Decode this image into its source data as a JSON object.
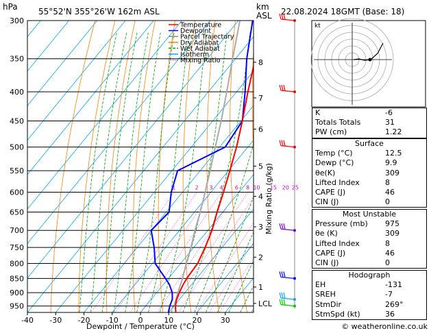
{
  "header": {
    "pressure_unit": "hPa",
    "location": "55°52'N  355°26'W  162m  ASL",
    "height_unit_km": "km",
    "height_unit_asl": "ASL",
    "datetime": "22.08.2024  18GMT  (Base: 18)"
  },
  "chart_data": {
    "type": "skew-t",
    "xlabel": "Dewpoint / Temperature (°C)",
    "ylabel_right": "Mixing Ratio (g/kg)",
    "pressure_levels": [
      300,
      350,
      400,
      450,
      500,
      550,
      600,
      650,
      700,
      750,
      800,
      850,
      900,
      950
    ],
    "pressure_range": [
      300,
      975
    ],
    "temperature_ticks": [
      -40,
      -30,
      -20,
      -10,
      0,
      10,
      20,
      30
    ],
    "temperature_range_at_bottom": [
      -40,
      40
    ],
    "km_ticks": [
      {
        "label": "1",
        "p": 880
      },
      {
        "label": "2",
        "p": 780
      },
      {
        "label": "3",
        "p": 690
      },
      {
        "label": "4",
        "p": 610
      },
      {
        "label": "5",
        "p": 540
      },
      {
        "label": "6",
        "p": 465
      },
      {
        "label": "7",
        "p": 410
      },
      {
        "label": "8",
        "p": 355
      },
      {
        "label": "LCL",
        "p": 940
      }
    ],
    "mixing_ratio_labels": [
      "1",
      "2",
      "3",
      "4",
      "6",
      "8",
      "10",
      "15",
      "20",
      "25"
    ],
    "legend": [
      {
        "name": "Temperature",
        "color": "#ff0000"
      },
      {
        "name": "Dewpoint",
        "color": "#0000ff"
      },
      {
        "name": "Parcel Trajectory",
        "color": "#888888"
      },
      {
        "name": "Dry Adiabat",
        "color": "#ff8000"
      },
      {
        "name": "Wet Adiabat",
        "color": "#00a000"
      },
      {
        "name": "Isotherm",
        "color": "#00aaff"
      },
      {
        "name": "Mixing Ratio",
        "color": "#ff00ff"
      }
    ],
    "temperature_profile": [
      [
        975,
        12.5
      ],
      [
        950,
        10.5
      ],
      [
        925,
        9.0
      ],
      [
        900,
        8.0
      ],
      [
        870,
        7.0
      ],
      [
        850,
        6.5
      ],
      [
        800,
        6.0
      ],
      [
        750,
        4.0
      ],
      [
        700,
        1.5
      ],
      [
        650,
        -2.0
      ],
      [
        600,
        -5.5
      ],
      [
        550,
        -9.5
      ],
      [
        500,
        -14.0
      ],
      [
        450,
        -19.5
      ],
      [
        400,
        -26.0
      ],
      [
        350,
        -33.0
      ],
      [
        300,
        -40.0
      ]
    ],
    "dewpoint_profile": [
      [
        975,
        9.9
      ],
      [
        950,
        8.5
      ],
      [
        925,
        7.5
      ],
      [
        900,
        5.5
      ],
      [
        870,
        2.0
      ],
      [
        850,
        -1.0
      ],
      [
        800,
        -9.0
      ],
      [
        750,
        -14.0
      ],
      [
        700,
        -20.0
      ],
      [
        650,
        -19.0
      ],
      [
        600,
        -24.0
      ],
      [
        550,
        -28.0
      ],
      [
        500,
        -18.0
      ],
      [
        450,
        -19.5
      ],
      [
        400,
        -27.0
      ],
      [
        350,
        -36.0
      ],
      [
        300,
        -45.0
      ]
    ],
    "parcel_profile": [
      [
        975,
        12.5
      ],
      [
        940,
        9.5
      ],
      [
        900,
        7.5
      ],
      [
        850,
        5.0
      ],
      [
        800,
        2.0
      ],
      [
        750,
        -1.0
      ],
      [
        700,
        -4.5
      ],
      [
        650,
        -8.0
      ],
      [
        600,
        -12.0
      ],
      [
        550,
        -16.5
      ],
      [
        500,
        -21.5
      ],
      [
        450,
        -27.0
      ],
      [
        400,
        -33.5
      ],
      [
        350,
        -41.0
      ],
      [
        300,
        -49.5
      ]
    ],
    "wind_barbs": [
      {
        "p": 300,
        "color": "#ff0000"
      },
      {
        "p": 400,
        "color": "#ff0000"
      },
      {
        "p": 500,
        "color": "#ff0000"
      },
      {
        "p": 700,
        "color": "#8800cc"
      },
      {
        "p": 850,
        "color": "#0000ff"
      },
      {
        "p": 925,
        "color": "#00aaff"
      },
      {
        "p": 950,
        "color": "#00cc00"
      }
    ],
    "hodograph_label": "kt"
  },
  "indices": {
    "k_label": "K",
    "k_value": "-6",
    "tt_label": "Totals Totals",
    "tt_value": "31",
    "pw_label": "PW (cm)",
    "pw_value": "1.22"
  },
  "surface": {
    "title": "Surface",
    "rows": [
      {
        "label": "Temp (°C)",
        "value": "12.5"
      },
      {
        "label": "Dewp (°C)",
        "value": "9.9"
      },
      {
        "label": "θe(K)",
        "value": "309"
      },
      {
        "label": "Lifted Index",
        "value": "8"
      },
      {
        "label": "CAPE (J)",
        "value": "46"
      },
      {
        "label": "CIN (J)",
        "value": "0"
      }
    ]
  },
  "most_unstable": {
    "title": "Most Unstable",
    "rows": [
      {
        "label": "Pressure (mb)",
        "value": "975"
      },
      {
        "label": "θe (K)",
        "value": "309"
      },
      {
        "label": "Lifted Index",
        "value": "8"
      },
      {
        "label": "CAPE (J)",
        "value": "46"
      },
      {
        "label": "CIN (J)",
        "value": "0"
      }
    ]
  },
  "hodograph": {
    "title": "Hodograph",
    "rows": [
      {
        "label": "EH",
        "value": "-131"
      },
      {
        "label": "SREH",
        "value": "-7"
      },
      {
        "label": "StmDir",
        "value": "269°"
      },
      {
        "label": "StmSpd (kt)",
        "value": "36"
      }
    ]
  },
  "footer": {
    "credit": "© weatheronline.co.uk"
  }
}
